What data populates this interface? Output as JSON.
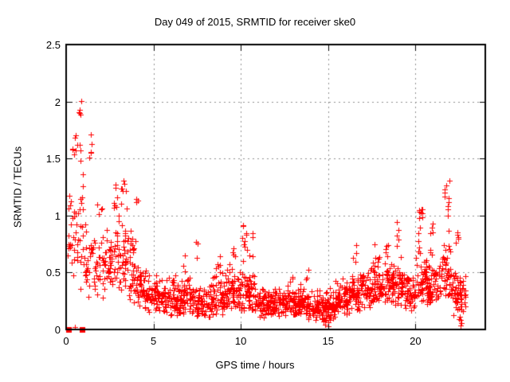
{
  "chart_data": {
    "type": "scatter",
    "title": "Day 049 of 2015, SRMTID for receiver ske0",
    "xlabel": "GPS time / hours",
    "ylabel": "SRMTID / TECUs",
    "xlim": [
      0,
      24
    ],
    "ylim": [
      0,
      2.5
    ],
    "xticks": [
      0,
      5,
      10,
      15,
      20
    ],
    "xtick_labels": [
      "0",
      "5",
      "10",
      "15",
      "20"
    ],
    "yticks": [
      0,
      0.5,
      1,
      1.5,
      2,
      2.5
    ],
    "ytick_labels": [
      "0",
      "0.5",
      "1",
      "1.5",
      "2",
      "2.5"
    ],
    "grid": true,
    "legend": "none",
    "marker": {
      "symbol": "plus",
      "color": "#ff0000",
      "size": 7
    },
    "grid_color": "#909090",
    "frame_color": "#000000",
    "background_color": "#ffffff",
    "seed": 49,
    "zero_epoch_squares": [
      [
        0.12,
        0
      ],
      [
        0.93,
        0
      ]
    ],
    "isolated_points": [
      [
        0.5,
        0.02
      ]
    ],
    "density_segments": [
      [
        0.05,
        0.5,
        22,
        0.3,
        1.55
      ],
      [
        0.5,
        1.0,
        26,
        0.35,
        1.5
      ],
      [
        1.0,
        1.6,
        26,
        0.25,
        1.05
      ],
      [
        1.6,
        2.2,
        30,
        0.25,
        0.85
      ],
      [
        2.2,
        2.8,
        38,
        0.3,
        1.0
      ],
      [
        2.8,
        3.5,
        48,
        0.28,
        1.1
      ],
      [
        3.5,
        4.1,
        44,
        0.22,
        0.95
      ],
      [
        4.1,
        4.7,
        40,
        0.18,
        0.6
      ],
      [
        4.7,
        5.5,
        55,
        0.13,
        0.5
      ],
      [
        5.5,
        6.5,
        70,
        0.12,
        0.48
      ],
      [
        6.5,
        7.5,
        72,
        0.1,
        0.5
      ],
      [
        7.5,
        8.5,
        75,
        0.1,
        0.48
      ],
      [
        8.5,
        9.3,
        60,
        0.12,
        0.55
      ],
      [
        9.3,
        10.1,
        60,
        0.13,
        0.6
      ],
      [
        10.1,
        10.8,
        50,
        0.12,
        0.55
      ],
      [
        10.8,
        11.6,
        62,
        0.1,
        0.4
      ],
      [
        11.6,
        12.6,
        80,
        0.12,
        0.4
      ],
      [
        12.6,
        13.6,
        82,
        0.11,
        0.43
      ],
      [
        13.6,
        14.6,
        75,
        0.08,
        0.38
      ],
      [
        14.6,
        15.4,
        70,
        0.06,
        0.38
      ],
      [
        15.4,
        16.2,
        65,
        0.12,
        0.45
      ],
      [
        16.2,
        17.0,
        62,
        0.15,
        0.52
      ],
      [
        17.0,
        17.8,
        62,
        0.18,
        0.58
      ],
      [
        17.8,
        18.6,
        60,
        0.2,
        0.65
      ],
      [
        18.6,
        19.3,
        55,
        0.18,
        0.7
      ],
      [
        19.3,
        20.0,
        52,
        0.15,
        0.55
      ],
      [
        20.0,
        20.7,
        55,
        0.2,
        0.75
      ],
      [
        20.7,
        21.4,
        52,
        0.2,
        0.7
      ],
      [
        21.4,
        22.1,
        50,
        0.22,
        0.85
      ],
      [
        22.1,
        22.9,
        58,
        0.12,
        0.6
      ]
    ],
    "spike_clusters": [
      [
        0.75,
        0.15,
        8,
        1.55,
        2.02
      ],
      [
        0.45,
        0.12,
        6,
        1.45,
        1.75
      ],
      [
        1.35,
        0.12,
        5,
        1.45,
        1.72
      ],
      [
        2.85,
        0.15,
        7,
        1.05,
        1.27
      ],
      [
        3.35,
        0.2,
        8,
        1.05,
        1.36
      ],
      [
        1.9,
        0.15,
        4,
        0.9,
        1.1
      ],
      [
        4.0,
        0.1,
        3,
        0.95,
        1.15
      ],
      [
        7.5,
        0.1,
        3,
        0.55,
        0.78
      ],
      [
        6.8,
        0.1,
        3,
        0.5,
        0.65
      ],
      [
        8.7,
        0.12,
        4,
        0.55,
        0.68
      ],
      [
        9.6,
        0.1,
        4,
        0.6,
        0.76
      ],
      [
        10.2,
        0.15,
        10,
        0.6,
        0.94
      ],
      [
        10.6,
        0.1,
        4,
        0.6,
        0.88
      ],
      [
        12.9,
        0.1,
        3,
        0.42,
        0.55
      ],
      [
        13.8,
        0.1,
        3,
        0.4,
        0.58
      ],
      [
        16.5,
        0.12,
        4,
        0.5,
        0.77
      ],
      [
        17.6,
        0.1,
        4,
        0.55,
        0.8
      ],
      [
        18.4,
        0.12,
        5,
        0.6,
        0.85
      ],
      [
        19.0,
        0.1,
        5,
        0.7,
        1.04
      ],
      [
        20.3,
        0.15,
        12,
        0.7,
        1.07
      ],
      [
        20.9,
        0.1,
        5,
        0.65,
        0.95
      ],
      [
        21.8,
        0.15,
        12,
        0.85,
        1.33
      ],
      [
        22.4,
        0.1,
        5,
        0.6,
        0.9
      ],
      [
        22.5,
        0.12,
        5,
        0.03,
        0.12
      ],
      [
        14.9,
        0.15,
        5,
        0.03,
        0.12
      ]
    ]
  }
}
